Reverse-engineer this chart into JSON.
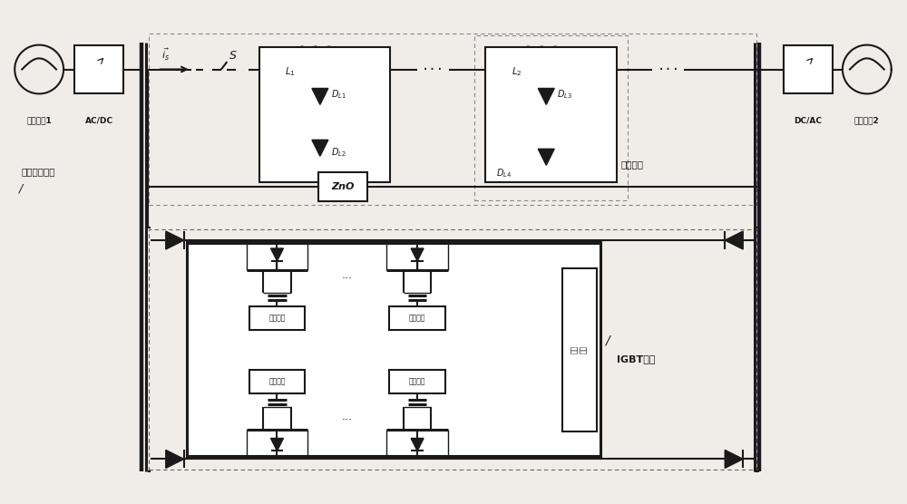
{
  "bg_color": "#f0ede8",
  "line_color": "#1a1a1a",
  "text_color": "#1a1a1a",
  "labels": {
    "ac1": "交流系瀱1",
    "acdc": "AC/DC",
    "ac2": "交流系瀱2",
    "dcac": "DC/AC",
    "is": "$\\vec{i_s}$",
    "S": "$S$",
    "L1": "$L_1$",
    "L2": "$L_2$",
    "DL1": "$D_{L1}$",
    "DL2": "$D_{L2}$",
    "DL3": "$D_{L3}$",
    "DL4": "$D_{L4}$",
    "ZnO": "ZnO",
    "mech": "机械开关支路",
    "xlian": "限流电路",
    "igbt": "IGBT支路",
    "jydl": "均压电路",
    "jyliu": "均流\n电路"
  }
}
